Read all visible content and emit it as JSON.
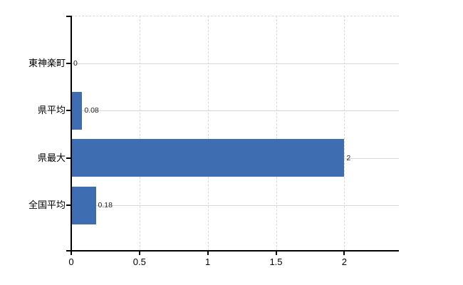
{
  "chart_data": {
    "type": "bar",
    "orientation": "horizontal",
    "title": "",
    "categories": [
      "東神楽町",
      "県平均",
      "県最大",
      "全国平均"
    ],
    "values": [
      0,
      0.08,
      2,
      0.18
    ],
    "value_labels": [
      "0",
      "0.08",
      "2",
      "0.18"
    ],
    "x_tick_labels": [
      "0",
      "0.5",
      "1",
      "1.5",
      "2"
    ],
    "x_tick_values": [
      0,
      0.5,
      1,
      1.5,
      2
    ],
    "xlim": [
      0,
      2.4
    ],
    "grid": true,
    "legend": "none",
    "colors": {
      "bar": "#3e6db2",
      "axis": "#000000",
      "grid_horizontal": "#d5dcd2",
      "grid_vertical": "#d8d8d8",
      "top_border": "#d9d9d9",
      "category_text": "#000000",
      "value_text": "#222222",
      "tick_text": "#000000",
      "background": "#ffffff"
    }
  }
}
